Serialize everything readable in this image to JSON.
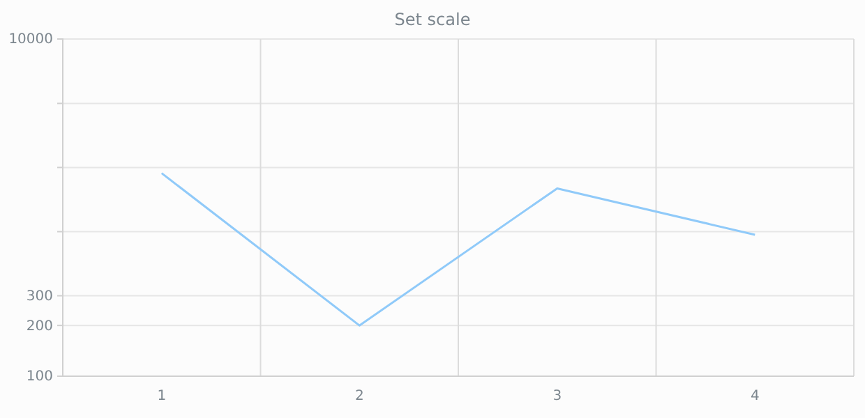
{
  "chart_data": {
    "type": "line",
    "title": "Set scale",
    "categories": [
      "1",
      "2",
      "3",
      "4"
    ],
    "series": [
      {
        "color": "#90caf9",
        "values": [
          1600,
          200,
          1300,
          690
        ]
      }
    ],
    "log": true,
    "ylim": [
      100,
      10000
    ],
    "yticks": [
      100,
      200,
      300,
      {
        "value": 720,
        "label": null
      },
      {
        "value": 1730,
        "label": null
      },
      {
        "value": 4150,
        "label": null
      },
      10000
    ],
    "grid": true,
    "marker": "none",
    "line_style": "solid"
  }
}
